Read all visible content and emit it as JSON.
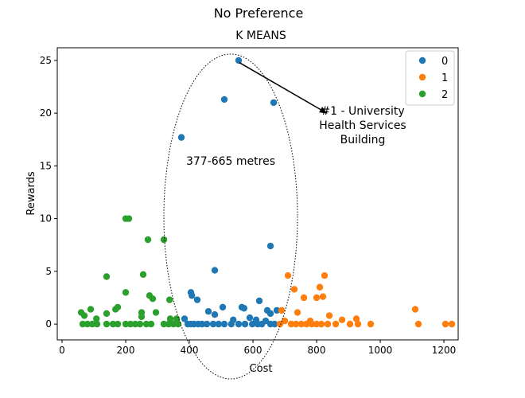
{
  "chart_data": {
    "type": "scatter",
    "suptitle": "No Preference",
    "title": "K MEANS",
    "xlabel": "Cost",
    "ylabel": "Rewards",
    "xlim": [
      -15,
      1245
    ],
    "ylim": [
      -1.5,
      26.2
    ],
    "xticks": [
      0,
      200,
      400,
      600,
      800,
      1000,
      1200
    ],
    "yticks": [
      0,
      5,
      10,
      15,
      20,
      25
    ],
    "grid": false,
    "legend_position": "top-right",
    "series": [
      {
        "name": "0",
        "color": "#1f77b4",
        "points": [
          [
            555,
            25
          ],
          [
            510,
            21.3
          ],
          [
            665,
            21
          ],
          [
            375,
            17.7
          ],
          [
            655,
            7.4
          ],
          [
            480,
            5.1
          ],
          [
            405,
            3
          ],
          [
            408,
            2.7
          ],
          [
            425,
            2.3
          ],
          [
            620,
            2.2
          ],
          [
            505,
            1.6
          ],
          [
            565,
            1.6
          ],
          [
            572,
            1.5
          ],
          [
            645,
            1.3
          ],
          [
            460,
            1.2
          ],
          [
            675,
            1.3
          ],
          [
            655,
            1
          ],
          [
            385,
            0.5
          ],
          [
            480,
            0.9
          ],
          [
            590,
            0.6
          ],
          [
            610,
            0.4
          ],
          [
            538,
            0.4
          ],
          [
            640,
            0.3
          ],
          [
            395,
            0
          ],
          [
            405,
            0
          ],
          [
            415,
            0
          ],
          [
            428,
            0
          ],
          [
            440,
            0
          ],
          [
            455,
            0
          ],
          [
            475,
            0
          ],
          [
            492,
            0
          ],
          [
            510,
            0
          ],
          [
            532,
            0
          ],
          [
            555,
            0
          ],
          [
            575,
            0
          ],
          [
            598,
            0
          ],
          [
            615,
            0
          ],
          [
            628,
            0
          ],
          [
            655,
            0
          ],
          [
            668,
            0
          ]
        ]
      },
      {
        "name": "1",
        "color": "#ff7f0e",
        "points": [
          [
            825,
            4.6
          ],
          [
            710,
            4.6
          ],
          [
            810,
            3.5
          ],
          [
            730,
            3.3
          ],
          [
            760,
            2.5
          ],
          [
            800,
            2.5
          ],
          [
            820,
            2.6
          ],
          [
            690,
            1.3
          ],
          [
            740,
            1.1
          ],
          [
            840,
            0.8
          ],
          [
            1110,
            1.4
          ],
          [
            880,
            0.4
          ],
          [
            925,
            0.5
          ],
          [
            780,
            0.3
          ],
          [
            700,
            0.3
          ],
          [
            685,
            0
          ],
          [
            720,
            0
          ],
          [
            735,
            0
          ],
          [
            752,
            0
          ],
          [
            768,
            0
          ],
          [
            785,
            0
          ],
          [
            800,
            0
          ],
          [
            815,
            0
          ],
          [
            835,
            0
          ],
          [
            860,
            0
          ],
          [
            905,
            0
          ],
          [
            930,
            0
          ],
          [
            970,
            0
          ],
          [
            1120,
            0
          ],
          [
            1205,
            0
          ],
          [
            1225,
            0
          ]
        ]
      },
      {
        "name": "2",
        "color": "#2ca02c",
        "points": [
          [
            200,
            10
          ],
          [
            210,
            10
          ],
          [
            270,
            8
          ],
          [
            320,
            8
          ],
          [
            255,
            4.7
          ],
          [
            140,
            4.5
          ],
          [
            200,
            3
          ],
          [
            275,
            2.7
          ],
          [
            285,
            2.4
          ],
          [
            338,
            2.3
          ],
          [
            175,
            1.6
          ],
          [
            168,
            1.4
          ],
          [
            90,
            1.4
          ],
          [
            60,
            1.1
          ],
          [
            70,
            0.8
          ],
          [
            140,
            1
          ],
          [
            250,
            1.1
          ],
          [
            295,
            1.1
          ],
          [
            250,
            0.7
          ],
          [
            108,
            0.5
          ],
          [
            340,
            0.5
          ],
          [
            360,
            0.5
          ],
          [
            65,
            0
          ],
          [
            80,
            0
          ],
          [
            95,
            0
          ],
          [
            110,
            0
          ],
          [
            140,
            0
          ],
          [
            160,
            0
          ],
          [
            175,
            0
          ],
          [
            200,
            0
          ],
          [
            215,
            0
          ],
          [
            230,
            0
          ],
          [
            245,
            0
          ],
          [
            265,
            0
          ],
          [
            280,
            0
          ],
          [
            320,
            0
          ],
          [
            335,
            0
          ],
          [
            350,
            0
          ],
          [
            365,
            0
          ]
        ]
      }
    ],
    "annotations": [
      {
        "label_lines": [
          "377-665 metres"
        ]
      },
      {
        "label_lines": [
          "#1 - University",
          "Health Services",
          "Building"
        ],
        "arrow_from": [
          832,
          20
        ],
        "arrow_to": [
          557,
          24.8
        ]
      }
    ],
    "ellipse": {
      "center": [
        530,
        10.2
      ],
      "rx": 210,
      "ry": 15.4
    }
  }
}
